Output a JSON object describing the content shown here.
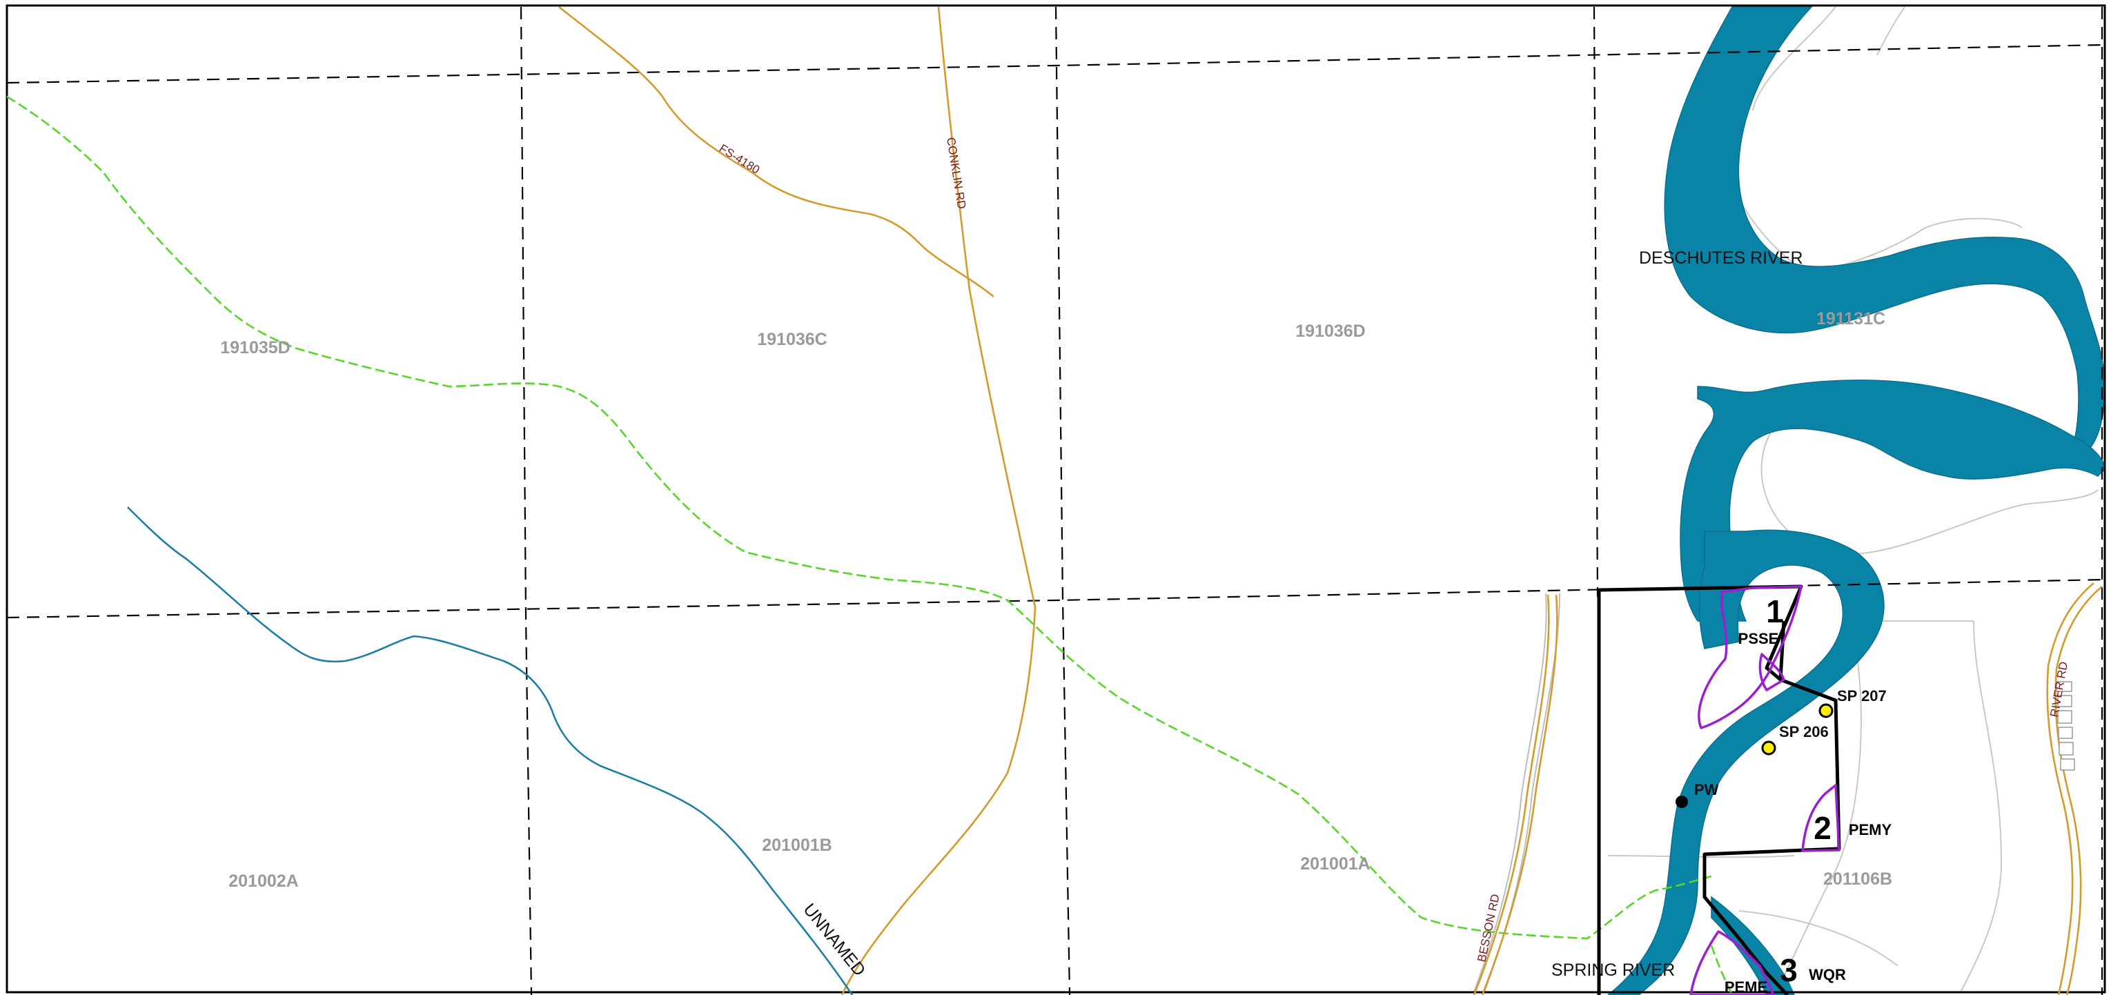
{
  "sections": [
    "191035D",
    "191036C",
    "191036D",
    "191131C",
    "201002A",
    "201001B",
    "201001A",
    "201106B"
  ],
  "rivers": [
    "DESCHUTES RIVER",
    "SPRING RIVER"
  ],
  "streams": [
    "UNNAMED"
  ],
  "roads": [
    "FS-4180",
    "CONKLIN RD",
    "BESSON RD",
    "RIVER RD"
  ],
  "wetlands": [
    {
      "number": "1",
      "code": "PSSE"
    },
    {
      "number": "2",
      "code": "PEMY"
    },
    {
      "number": "3",
      "code": "WQR"
    },
    {
      "number": "",
      "code": "PEME"
    }
  ],
  "points": [
    "SP 207",
    "SP 206",
    "PW"
  ],
  "colors": {
    "river": "#0a84a6",
    "stream": "#1a7fa3",
    "road": "#d49a2a",
    "trail": "#56d626",
    "wetland": "#9b1fd1",
    "boundary": "#000000",
    "section_line": "#000000",
    "contour": "#c8c8c8",
    "sample_point": "#ffee00"
  }
}
